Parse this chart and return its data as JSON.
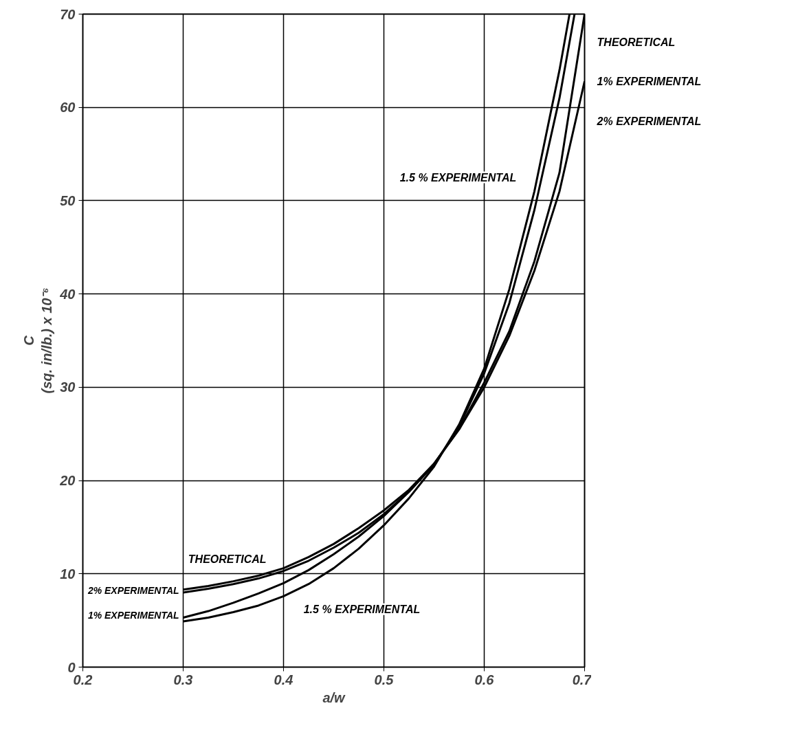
{
  "chart_data": {
    "type": "line",
    "xlabel": "a/w",
    "ylabel": "C\n(sq. in/lb.) x 10⁻⁶",
    "xlim": [
      0.2,
      0.7
    ],
    "ylim": [
      0,
      70
    ],
    "xticks": [
      {
        "value": 0.2,
        "label": "0.2"
      },
      {
        "value": 0.3,
        "label": "0.3"
      },
      {
        "value": 0.4,
        "label": "0.4"
      },
      {
        "value": 0.5,
        "label": "0.5"
      },
      {
        "value": 0.6,
        "label": "0.6"
      },
      {
        "value": 0.7,
        "label": "0.7"
      }
    ],
    "yticks": [
      0,
      10,
      20,
      30,
      40,
      50,
      60,
      70
    ],
    "grid": true,
    "marker": "none",
    "line_style": "solid",
    "series": [
      {
        "name": "THEORETICAL",
        "color": "#000000",
        "x": [
          0.3,
          0.325,
          0.35,
          0.375,
          0.4,
          0.425,
          0.45,
          0.475,
          0.5,
          0.525,
          0.55,
          0.575,
          0.6,
          0.625,
          0.65,
          0.675,
          0.7
        ],
        "values": [
          8.3,
          8.7,
          9.2,
          9.8,
          10.6,
          11.8,
          13.2,
          14.9,
          16.8,
          19.0,
          21.8,
          25.5,
          30.5,
          36,
          43.5,
          53,
          70
        ]
      },
      {
        "name": "2% EXPERIMENTAL",
        "color": "#000000",
        "x": [
          0.3,
          0.325,
          0.35,
          0.375,
          0.4,
          0.425,
          0.45,
          0.475,
          0.5,
          0.525,
          0.55,
          0.575,
          0.6,
          0.625,
          0.65,
          0.675,
          0.69
        ],
        "values": [
          8.0,
          8.4,
          8.9,
          9.5,
          10.3,
          11.4,
          12.8,
          14.4,
          16.4,
          18.8,
          21.7,
          25.8,
          31.5,
          39,
          49,
          61,
          70
        ]
      },
      {
        "name": "1% EXPERIMENTAL",
        "color": "#000000",
        "x": [
          0.3,
          0.325,
          0.35,
          0.375,
          0.4,
          0.425,
          0.45,
          0.475,
          0.5,
          0.525,
          0.55,
          0.575,
          0.6,
          0.625,
          0.65,
          0.675,
          0.7
        ],
        "values": [
          5.3,
          6.0,
          6.9,
          7.9,
          9.0,
          10.4,
          12.1,
          14.0,
          16.2,
          18.8,
          21.8,
          25.5,
          30,
          35.5,
          42.5,
          51,
          62.8
        ]
      },
      {
        "name": "1.5 % EXPERIMENTAL",
        "color": "#000000",
        "x": [
          0.3,
          0.325,
          0.35,
          0.375,
          0.4,
          0.425,
          0.45,
          0.475,
          0.5,
          0.525,
          0.55,
          0.575,
          0.6,
          0.625,
          0.65,
          0.675,
          0.685
        ],
        "values": [
          4.9,
          5.3,
          5.9,
          6.6,
          7.6,
          8.9,
          10.6,
          12.7,
          15.2,
          18.1,
          21.5,
          26,
          32,
          40.5,
          51,
          64,
          70
        ]
      }
    ]
  }
}
